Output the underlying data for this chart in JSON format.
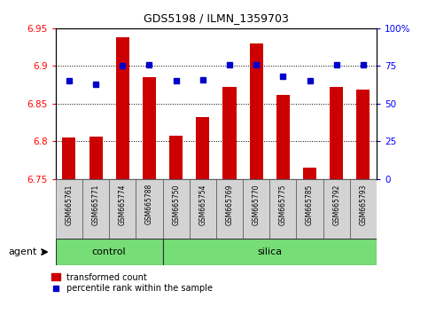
{
  "title": "GDS5198 / ILMN_1359703",
  "samples": [
    "GSM665761",
    "GSM665771",
    "GSM665774",
    "GSM665788",
    "GSM665750",
    "GSM665754",
    "GSM665769",
    "GSM665770",
    "GSM665775",
    "GSM665785",
    "GSM665792",
    "GSM665793"
  ],
  "n_control": 4,
  "n_silica": 8,
  "transformed_count": [
    6.805,
    6.806,
    6.938,
    6.885,
    6.808,
    6.832,
    6.872,
    6.93,
    6.862,
    6.765,
    6.872,
    6.869
  ],
  "percentile_rank": [
    65,
    63,
    75,
    76,
    65,
    66,
    76,
    76,
    68,
    65,
    76,
    76
  ],
  "y_min": 6.75,
  "y_max": 6.95,
  "y_ticks": [
    6.75,
    6.8,
    6.85,
    6.9,
    6.95
  ],
  "y2_ticks": [
    0,
    25,
    50,
    75,
    100
  ],
  "y2_labels": [
    "0",
    "25",
    "50",
    "75",
    "100%"
  ],
  "bar_color": "#cc0000",
  "dot_color": "#0000cc",
  "bg_label": "#d3d3d3",
  "bg_green": "#77dd77",
  "control_label": "control",
  "silica_label": "silica",
  "agent_label": "agent",
  "legend_bar": "transformed count",
  "legend_dot": "percentile rank within the sample",
  "bar_width": 0.5,
  "baseline": 6.75
}
